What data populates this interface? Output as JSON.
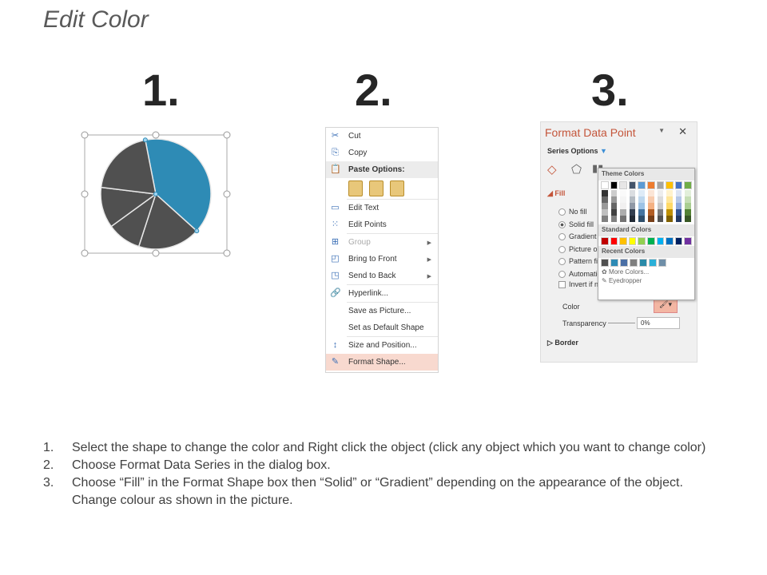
{
  "title": "Edit Color",
  "step_numbers": [
    "1.",
    "2.",
    "3."
  ],
  "pie": {
    "highlight_color": "#2e8bb5",
    "slice_color": "#505050"
  },
  "context_menu": {
    "items": [
      {
        "label": "Cut",
        "icon": "scissors-icon"
      },
      {
        "label": "Copy",
        "icon": "copy-icon"
      },
      {
        "label": "Paste Options:",
        "icon": "paste-icon",
        "header": true
      },
      {
        "label": "Edit Text",
        "icon": "edit-text-icon"
      },
      {
        "label": "Edit Points",
        "icon": "edit-points-icon"
      },
      {
        "label": "Group",
        "icon": "group-icon",
        "disabled": true,
        "submenu": true
      },
      {
        "label": "Bring to Front",
        "icon": "bring-front-icon",
        "submenu": true
      },
      {
        "label": "Send to Back",
        "icon": "send-back-icon",
        "submenu": true
      },
      {
        "label": "Hyperlink...",
        "icon": "hyperlink-icon"
      },
      {
        "label": "Save as Picture..."
      },
      {
        "label": "Set as Default Shape"
      },
      {
        "label": "Size and Position...",
        "icon": "size-position-icon"
      },
      {
        "label": "Format Shape...",
        "icon": "format-shape-icon",
        "highlighted": true
      }
    ]
  },
  "format_pane": {
    "title": "Format Data Point",
    "series_options": "Series Options",
    "fill": "Fill",
    "options": [
      "No fill",
      "Solid fill",
      "Gradient fi",
      "Picture or",
      "Pattern fill",
      "Automatic"
    ],
    "selected_option": "Solid fill",
    "invert": "Invert if ne",
    "color_label": "Color",
    "transparency_label": "Transparency",
    "transparency_value": "0%",
    "border": "Border",
    "palette": {
      "theme_header": "Theme Colors",
      "theme_colors": [
        "#ffffff",
        "#000000",
        "#e7e6e6",
        "#44546a",
        "#5b9bd5",
        "#ed7d31",
        "#a5a5a5",
        "#ffc000",
        "#4472c4",
        "#70ad47"
      ],
      "standard_header": "Standard Colors",
      "standard_colors": [
        "#c00000",
        "#ff0000",
        "#ffc000",
        "#ffff00",
        "#92d050",
        "#00b050",
        "#00b0f0",
        "#0070c0",
        "#002060",
        "#7030a0"
      ],
      "recent_header": "Recent Colors",
      "recent_colors": [
        "#505050",
        "#2e8bb5",
        "#4a6fa5",
        "#7f7f7f",
        "#2a8aa8",
        "#2bb0d8",
        "#6f8fa8"
      ],
      "more_colors": "More Colors...",
      "eyedropper": "Eyedropper"
    }
  },
  "instructions": [
    {
      "n": "1.",
      "text": "Select the shape to change the color and Right click the object (click any object which you want to change color)"
    },
    {
      "n": "2.",
      "text": "Choose Format Data Series in the dialog box."
    },
    {
      "n": "3.",
      "text": "Choose “Fill” in the Format Shape box then  “Solid” or “Gradient” depending on the appearance of the object. Change colour as shown in the picture."
    }
  ]
}
